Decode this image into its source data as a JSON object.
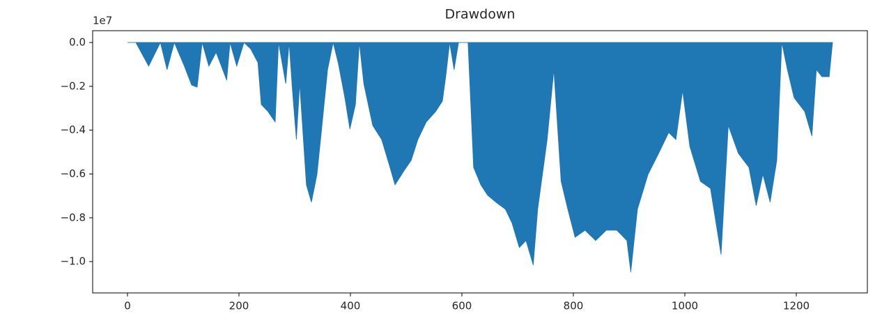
{
  "chart_data": {
    "type": "area",
    "title": "Drawdown",
    "offset_label": "1e7",
    "x": [
      0,
      15,
      38,
      59,
      71,
      84,
      102,
      115,
      125,
      134,
      146,
      159,
      178,
      184,
      196,
      209,
      221,
      234,
      240,
      252,
      265,
      271,
      284,
      290,
      296,
      303,
      309,
      321,
      330,
      340,
      349,
      359,
      369,
      378,
      390,
      399,
      409,
      416,
      424,
      440,
      456,
      471,
      480,
      496,
      509,
      521,
      536,
      553,
      565,
      571,
      578,
      586,
      594,
      611,
      621,
      634,
      646,
      661,
      678,
      690,
      703,
      715,
      728,
      736,
      753,
      765,
      778,
      790,
      803,
      821,
      840,
      859,
      878,
      896,
      903,
      915,
      934,
      953,
      971,
      984,
      996,
      1009,
      1028,
      1046,
      1065,
      1078,
      1096,
      1115,
      1128,
      1140,
      1153,
      1165,
      1174,
      1184,
      1196,
      1215,
      1228,
      1236,
      1246,
      1259,
      1265
    ],
    "series": [
      {
        "color": "#1f77b4",
        "values": [
          0,
          0,
          -0.108,
          0,
          -0.124,
          0,
          -0.108,
          -0.194,
          -0.204,
          0,
          -0.108,
          -0.045,
          -0.172,
          0,
          -0.108,
          0,
          -0.029,
          -0.092,
          -0.283,
          -0.315,
          -0.363,
          0,
          -0.188,
          0,
          -0.22,
          -0.443,
          -0.188,
          -0.65,
          -0.729,
          -0.602,
          -0.379,
          -0.124,
          0,
          -0.092,
          -0.252,
          -0.395,
          -0.283,
          0,
          -0.188,
          -0.379,
          -0.443,
          -0.57,
          -0.65,
          -0.586,
          -0.538,
          -0.443,
          -0.363,
          -0.315,
          -0.268,
          -0.156,
          0,
          -0.124,
          0,
          0,
          -0.57,
          -0.65,
          -0.697,
          -0.729,
          -0.761,
          -0.825,
          -0.936,
          -0.904,
          -1.016,
          -0.761,
          -0.443,
          -0.124,
          -0.634,
          -0.761,
          -0.889,
          -0.857,
          -0.904,
          -0.857,
          -0.857,
          -0.904,
          -1.048,
          -0.761,
          -0.602,
          -0.506,
          -0.411,
          -0.443,
          -0.22,
          -0.475,
          -0.634,
          -0.666,
          -0.968,
          -0.379,
          -0.506,
          -0.57,
          -0.745,
          -0.602,
          -0.729,
          -0.538,
          0,
          -0.124,
          -0.252,
          -0.315,
          -0.427,
          -0.124,
          -0.156,
          -0.156,
          0
        ]
      }
    ],
    "xlim": [
      -62.5,
      1327.5
    ],
    "ylim": [
      -1.143,
      0.054
    ],
    "xticks": [
      0,
      200,
      400,
      600,
      800,
      1000,
      1200
    ],
    "yticks": [
      {
        "value": 0,
        "label": "0.0"
      },
      {
        "value": -0.2,
        "label": "−0.2"
      },
      {
        "value": -0.4,
        "label": "−0.4"
      },
      {
        "value": -0.6,
        "label": "−0.6"
      },
      {
        "value": -0.8,
        "label": "−0.8"
      },
      {
        "value": -1.0,
        "label": "−1.0"
      }
    ],
    "grid": false
  }
}
